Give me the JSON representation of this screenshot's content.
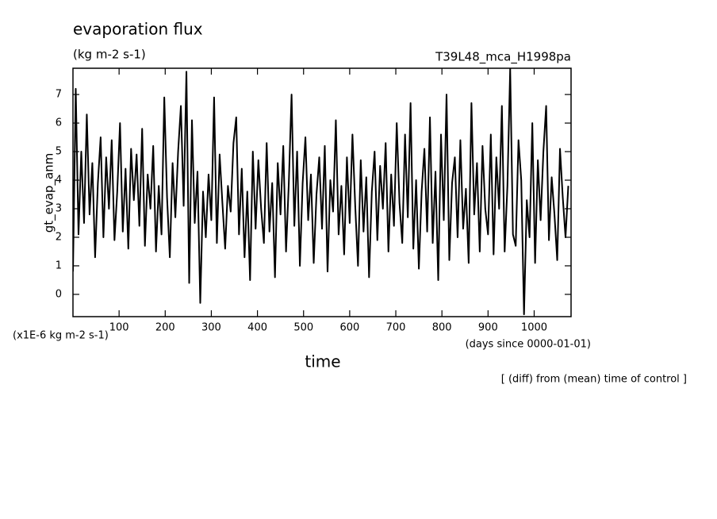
{
  "chart_data": {
    "type": "line",
    "title": "evaporation flux",
    "subtitle": "(kg m-2 s-1)",
    "annotation": "T39L48_mca_H1998pa",
    "ylabel": "gt_evap_anm",
    "yunits": "(x1E-6 kg m-2 s-1)",
    "xunits": "(days since 0000-01-01)",
    "xlabel": "time",
    "note": "[ (diff) from (mean) time of control ]",
    "xlim": [
      0,
      1080
    ],
    "ylim": [
      -0.78,
      7.92
    ],
    "xticks": [
      100,
      200,
      300,
      400,
      500,
      600,
      700,
      800,
      900,
      1000
    ],
    "yticks": [
      0,
      1,
      2,
      3,
      4,
      5,
      6,
      7
    ],
    "series": [
      {
        "color": "#000000",
        "x": [
          0,
          6,
          12,
          18,
          24,
          30,
          36,
          42,
          48,
          54,
          60,
          66,
          72,
          78,
          84,
          90,
          96,
          102,
          108,
          114,
          120,
          126,
          132,
          138,
          144,
          150,
          156,
          162,
          168,
          174,
          180,
          186,
          192,
          198,
          204,
          210,
          216,
          222,
          228,
          234,
          240,
          246,
          252,
          258,
          264,
          270,
          276,
          282,
          288,
          294,
          300,
          306,
          312,
          318,
          324,
          330,
          336,
          342,
          348,
          354,
          360,
          366,
          372,
          378,
          384,
          390,
          396,
          402,
          408,
          414,
          420,
          426,
          432,
          438,
          444,
          450,
          456,
          462,
          468,
          474,
          480,
          486,
          492,
          498,
          504,
          510,
          516,
          522,
          528,
          534,
          540,
          546,
          552,
          558,
          564,
          570,
          576,
          582,
          588,
          594,
          600,
          606,
          612,
          618,
          624,
          630,
          636,
          642,
          648,
          654,
          660,
          666,
          672,
          678,
          684,
          690,
          696,
          702,
          708,
          714,
          720,
          726,
          732,
          738,
          744,
          750,
          756,
          762,
          768,
          774,
          780,
          786,
          792,
          798,
          804,
          810,
          816,
          822,
          828,
          834,
          840,
          846,
          852,
          858,
          864,
          870,
          876,
          882,
          888,
          894,
          900,
          906,
          912,
          918,
          924,
          930,
          936,
          942,
          948,
          954,
          960,
          966,
          972,
          978,
          984,
          990,
          996,
          1002,
          1008,
          1014,
          1020,
          1026,
          1032,
          1038,
          1044,
          1050,
          1056,
          1062,
          1068,
          1074
        ],
        "values": [
          0.8,
          7.2,
          2.1,
          5.0,
          2.5,
          6.3,
          2.8,
          4.6,
          1.3,
          3.9,
          5.5,
          2.0,
          4.8,
          3.0,
          5.4,
          1.9,
          3.6,
          6.0,
          2.2,
          4.4,
          1.6,
          5.1,
          3.3,
          4.9,
          2.4,
          5.8,
          1.7,
          4.2,
          3.0,
          5.2,
          1.5,
          3.8,
          2.1,
          6.9,
          3.4,
          1.3,
          4.6,
          2.7,
          5.0,
          6.6,
          3.1,
          7.8,
          0.4,
          6.1,
          2.5,
          4.3,
          -0.3,
          3.6,
          2.0,
          4.2,
          2.6,
          6.9,
          1.8,
          4.9,
          3.2,
          1.6,
          3.8,
          2.9,
          5.3,
          6.2,
          2.1,
          4.4,
          1.3,
          3.6,
          0.5,
          5.0,
          2.3,
          4.7,
          3.0,
          1.8,
          5.3,
          2.2,
          3.9,
          0.6,
          4.6,
          2.8,
          5.2,
          1.5,
          3.9,
          7.0,
          2.4,
          5.0,
          1.0,
          3.9,
          5.5,
          2.6,
          4.2,
          1.1,
          3.5,
          4.8,
          2.3,
          5.2,
          0.8,
          4.0,
          2.9,
          6.1,
          2.1,
          3.8,
          1.4,
          4.8,
          2.5,
          5.6,
          3.1,
          1.0,
          4.7,
          2.2,
          4.1,
          0.6,
          3.6,
          5.0,
          1.9,
          4.5,
          3.0,
          5.3,
          1.5,
          4.2,
          2.4,
          6.0,
          3.2,
          1.8,
          5.6,
          2.7,
          6.7,
          1.6,
          4.0,
          0.9,
          3.6,
          5.1,
          2.2,
          6.2,
          1.8,
          4.3,
          0.5,
          5.6,
          2.6,
          7.0,
          1.2,
          3.9,
          4.8,
          2.0,
          5.4,
          2.3,
          3.7,
          1.1,
          6.7,
          2.8,
          4.6,
          1.5,
          5.2,
          3.0,
          2.1,
          5.6,
          1.4,
          4.8,
          3.0,
          6.6,
          1.5,
          3.8,
          7.9,
          2.1,
          1.7,
          5.4,
          4.0,
          -0.7,
          3.3,
          2.0,
          6.0,
          1.1,
          4.7,
          2.6,
          5.0,
          6.6,
          1.9,
          4.1,
          2.8,
          1.2,
          5.1,
          3.4,
          2.0,
          3.8
        ]
      }
    ]
  }
}
